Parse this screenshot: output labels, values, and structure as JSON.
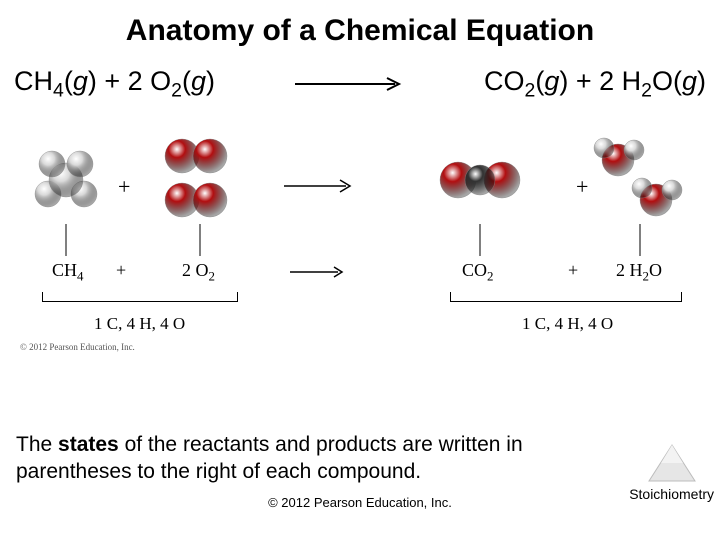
{
  "title": "Anatomy of a Chemical Equation",
  "equation": {
    "left": {
      "parts": [
        "CH",
        "4",
        "(",
        "g",
        ") + 2 O",
        "2",
        "(",
        "g",
        ")"
      ]
    },
    "right": {
      "parts": [
        "CO",
        "2",
        "(",
        "g",
        ") + 2 H",
        "2",
        "O(",
        "g",
        ")"
      ]
    },
    "arrow_color": "#000000"
  },
  "diagram": {
    "colors": {
      "hydrogen": "#d9d9d9",
      "carbon": "#323232",
      "oxygen": "#b20e10",
      "highlight": "#ffffff",
      "edge": "#888888",
      "label": "#000000"
    },
    "labels": {
      "ch4": "CH",
      "ch4_sub": "4",
      "o2": "2 O",
      "o2_sub": "2",
      "co2": "CO",
      "co2_sub": "2",
      "h2o": "2 H",
      "h2o_sub": "2",
      "h2o_tail": "O",
      "plus": "+",
      "atoms_left": "1 C, 4 H, 4 O",
      "atoms_right": "1 C, 4 H, 4 O",
      "tiny_copy": "© 2012 Pearson Education, Inc."
    }
  },
  "caption_parts": [
    "The ",
    "states",
    " of the reactants and products are written in parentheses to the right of each compound."
  ],
  "corner_label": "Stoichiometry",
  "footer": "© 2012 Pearson Education, Inc."
}
